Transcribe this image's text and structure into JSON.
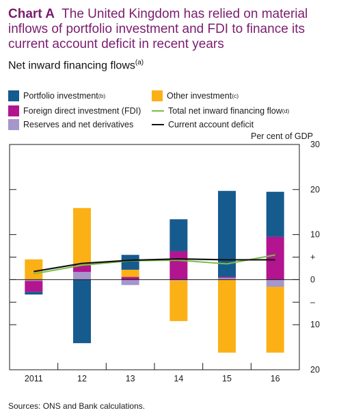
{
  "title": {
    "label": "Chart A",
    "text": "The United Kingdom has relied on material inflows of portfolio investment and FDI to finance its current account deficit in recent years"
  },
  "subtitle": {
    "text": "Net inward financing flows",
    "note": "(a)"
  },
  "legend": {
    "portfolio": {
      "label": "Portfolio investment",
      "note": "(b)"
    },
    "other": {
      "label": "Other investment",
      "note": "(c)"
    },
    "fdi": {
      "label": "Foreign direct investment (FDI)",
      "note": ""
    },
    "total": {
      "label": "Total net inward financing flow",
      "note": "(d)"
    },
    "reserves": {
      "label": "Reserves and net derivatives",
      "note": ""
    },
    "ca": {
      "label": "Current account deficit",
      "note": ""
    }
  },
  "units": "Per cent of GDP",
  "sources": "Sources: ONS and Bank calculations.",
  "colors": {
    "portfolio": "#165b8e",
    "other": "#fbb116",
    "fdi": "#b2158f",
    "reserves": "#a596cc",
    "total": "#79bd49",
    "ca": "#111111",
    "title": "#7a1c6e"
  },
  "chart_data": {
    "type": "bar",
    "stacked": true,
    "categories": [
      "2011",
      "12",
      "13",
      "14",
      "15",
      "16"
    ],
    "series": [
      {
        "name": "Reserves and net derivatives",
        "key": "reserves",
        "values": [
          -0.3,
          1.7,
          -1.2,
          -0.2,
          0.4,
          -1.6
        ]
      },
      {
        "name": "Foreign direct investment (FDI)",
        "key": "fdi",
        "values": [
          -2.4,
          1.5,
          0.6,
          6.3,
          0.2,
          9.5
        ]
      },
      {
        "name": "Other investment",
        "key": "other",
        "values": [
          4.5,
          12.7,
          1.6,
          -9.0,
          -16.2,
          -14.6
        ]
      },
      {
        "name": "Portfolio investment",
        "key": "portfolio",
        "values": [
          -0.6,
          -14.1,
          3.3,
          7.1,
          19.1,
          10.0
        ]
      }
    ],
    "lines": [
      {
        "name": "Total net inward financing flow",
        "key": "total",
        "values": [
          1.3,
          3.2,
          4.2,
          4.3,
          3.5,
          5.5
        ]
      },
      {
        "name": "Current account deficit",
        "key": "ca",
        "values": [
          1.8,
          3.6,
          4.3,
          4.6,
          4.4,
          4.4
        ]
      }
    ],
    "ylim": [
      -20,
      30
    ],
    "right_ticks": [
      {
        "value": 30,
        "label": "30"
      },
      {
        "value": 20,
        "label": "20"
      },
      {
        "value": 10,
        "label": "10"
      },
      {
        "value": 5,
        "label": "+"
      },
      {
        "value": 0,
        "label": "0"
      },
      {
        "value": -5,
        "label": "–"
      },
      {
        "value": -10,
        "label": "10"
      },
      {
        "value": -20,
        "label": "20"
      }
    ],
    "xlabel": "",
    "ylabel": "Per cent of GDP"
  }
}
